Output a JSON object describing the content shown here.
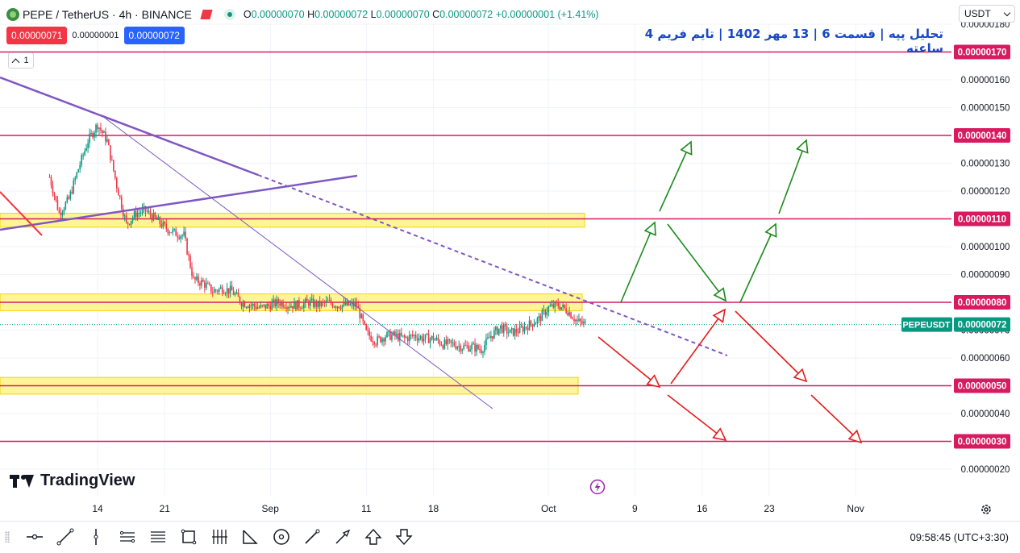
{
  "header": {
    "symbol_title": "PEPE / TetherUS · 4h · BINANCE",
    "ohlc_o_label": "O",
    "ohlc_o": "0.00000070",
    "ohlc_h_label": "H",
    "ohlc_h": "0.00000072",
    "ohlc_l_label": "L",
    "ohlc_l": "0.00000070",
    "ohlc_c_label": "C",
    "ohlc_c": "0.00000072",
    "ohlc_change": "+0.00000001 (+1.41%)",
    "sell_price": "0.00000071",
    "spread": "0.00000001",
    "buy_price": "0.00000072",
    "indicator_count": "1",
    "currency_select": "USDT",
    "annotation_title": "تحلیل پپه | قسمت 6 | 13 مهر 1402 | تایم فریم 4 ساعته"
  },
  "colors": {
    "up": "#089981",
    "down": "#f23645",
    "level_line": "#d81b60",
    "zone_fill": "#fff176",
    "trend": "#7e57c2",
    "arrow_up": "#1b8a1b",
    "arrow_down": "#e51c1c",
    "title_blue": "#1848c4"
  },
  "chart_data": {
    "type": "candlestick",
    "title": "PEPE / TetherUS · 4h · BINANCE",
    "price_axis_ticks": [
      "0.00000180",
      "0.00000160",
      "0.00000150",
      "0.00000130",
      "0.00000120",
      "0.00000100",
      "0.00000090",
      "0.00000070",
      "0.00000060",
      "0.00000040",
      "0.00000020"
    ],
    "time_axis_ticks": [
      "14",
      "21",
      "Sep",
      "11",
      "18",
      "Oct",
      "9",
      "16",
      "23",
      "Nov"
    ],
    "level_labels": [
      {
        "price": 1.7e-06,
        "label": "0.00000170"
      },
      {
        "price": 1.4e-06,
        "label": "0.00000140"
      },
      {
        "price": 1.1e-06,
        "label": "0.00000110"
      },
      {
        "price": 8e-07,
        "label": "0.00000080"
      },
      {
        "price": 5e-07,
        "label": "0.00000050"
      },
      {
        "price": 3e-07,
        "label": "0.00000030"
      }
    ],
    "current_price": {
      "symbol": "PEPEUSDT",
      "value": "0.00000072",
      "price": 7.2e-07
    },
    "support_resistance_zones": [
      {
        "from": 1.07e-06,
        "to": 1.12e-06
      },
      {
        "from": 7.7e-07,
        "to": 8.3e-07
      },
      {
        "from": 4.7e-07,
        "to": 5.3e-07
      }
    ],
    "price_path": [
      {
        "date": "Aug 9",
        "price": 1.25e-06
      },
      {
        "date": "Aug 10",
        "price": 1.12e-06
      },
      {
        "date": "Aug 11",
        "price": 1.17e-06
      },
      {
        "date": "Aug 12",
        "price": 1.28e-06
      },
      {
        "date": "Aug 13",
        "price": 1.38e-06
      },
      {
        "date": "Aug 14",
        "price": 1.44e-06
      },
      {
        "date": "Aug 15",
        "price": 1.38e-06
      },
      {
        "date": "Aug 16",
        "price": 1.22e-06
      },
      {
        "date": "Aug 17",
        "price": 1.08e-06
      },
      {
        "date": "Aug 18",
        "price": 1.12e-06
      },
      {
        "date": "Aug 19",
        "price": 1.13e-06
      },
      {
        "date": "Aug 20",
        "price": 1.1e-06
      },
      {
        "date": "Aug 21",
        "price": 1.07e-06
      },
      {
        "date": "Aug 22",
        "price": 1.05e-06
      },
      {
        "date": "Aug 23",
        "price": 1.04e-06
      },
      {
        "date": "Aug 24",
        "price": 8.8e-07
      },
      {
        "date": "Aug 25",
        "price": 8.7e-07
      },
      {
        "date": "Aug 26",
        "price": 8.4e-07
      },
      {
        "date": "Aug 27",
        "price": 8.5e-07
      },
      {
        "date": "Aug 28",
        "price": 8.4e-07
      },
      {
        "date": "Aug 29",
        "price": 8e-07
      },
      {
        "date": "Aug 30",
        "price": 7.9e-07
      },
      {
        "date": "Aug 31",
        "price": 7.8e-07
      },
      {
        "date": "Sep 1",
        "price": 7.9e-07
      },
      {
        "date": "Sep 2",
        "price": 8e-07
      },
      {
        "date": "Sep 3",
        "price": 7.9e-07
      },
      {
        "date": "Sep 4",
        "price": 7.9e-07
      },
      {
        "date": "Sep 5",
        "price": 8e-07
      },
      {
        "date": "Sep 6",
        "price": 7.9e-07
      },
      {
        "date": "Sep 7",
        "price": 8e-07
      },
      {
        "date": "Sep 8",
        "price": 7.9e-07
      },
      {
        "date": "Sep 9",
        "price": 7.9e-07
      },
      {
        "date": "Sep 10",
        "price": 7.9e-07
      },
      {
        "date": "Sep 11",
        "price": 6.9e-07
      },
      {
        "date": "Sep 12",
        "price": 6.6e-07
      },
      {
        "date": "Sep 13",
        "price": 6.8e-07
      },
      {
        "date": "Sep 14",
        "price": 6.8e-07
      },
      {
        "date": "Sep 15",
        "price": 6.7e-07
      },
      {
        "date": "Sep 16",
        "price": 6.8e-07
      },
      {
        "date": "Sep 17",
        "price": 6.7e-07
      },
      {
        "date": "Sep 18",
        "price": 6.7e-07
      },
      {
        "date": "Sep 19",
        "price": 6.5e-07
      },
      {
        "date": "Sep 20",
        "price": 6.5e-07
      },
      {
        "date": "Sep 21",
        "price": 6.4e-07
      },
      {
        "date": "Sep 22",
        "price": 6.4e-07
      },
      {
        "date": "Sep 23",
        "price": 6.3e-07
      },
      {
        "date": "Sep 24",
        "price": 6.8e-07
      },
      {
        "date": "Sep 25",
        "price": 7.1e-07
      },
      {
        "date": "Sep 26",
        "price": 6.9e-07
      },
      {
        "date": "Sep 27",
        "price": 7e-07
      },
      {
        "date": "Sep 28",
        "price": 7.2e-07
      },
      {
        "date": "Sep 29",
        "price": 7.4e-07
      },
      {
        "date": "Sep 30",
        "price": 7.8e-07
      },
      {
        "date": "Oct 1",
        "price": 7.9e-07
      },
      {
        "date": "Oct 2",
        "price": 7.7e-07
      },
      {
        "date": "Oct 3",
        "price": 7.3e-07
      },
      {
        "date": "Oct 4",
        "price": 7.2e-07
      }
    ],
    "bottom_time": "09:58:45 (UTC+3:30)"
  },
  "toolbar": {
    "tools": [
      "horizontal-line-icon",
      "trend-line-icon",
      "vertical-line-icon",
      "parallel-channel-icon",
      "fib-retracement-icon",
      "rectangle-icon",
      "long-position-icon",
      "triangle-pattern-icon",
      "ellipse-icon",
      "brush-icon",
      "arrow-icon",
      "arrow-up-marker-icon",
      "arrow-down-marker-icon"
    ]
  },
  "logo_text": "TradingView"
}
